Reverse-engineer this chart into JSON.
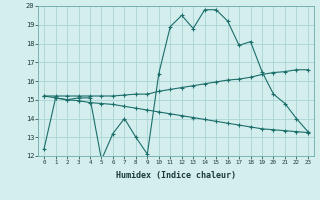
{
  "xlabel": "Humidex (Indice chaleur)",
  "bg_color": "#d4eeee",
  "grid_color": "#aad4d4",
  "line_color": "#1a6e6a",
  "xlim": [
    -0.5,
    23.5
  ],
  "ylim": [
    12,
    20
  ],
  "xtick_labels": [
    "0",
    "1",
    "2",
    "3",
    "4",
    "5",
    "6",
    "7",
    "8",
    "9",
    "10",
    "11",
    "12",
    "13",
    "14",
    "15",
    "16",
    "17",
    "18",
    "19",
    "20",
    "21",
    "22",
    "23"
  ],
  "ytick_labels": [
    "12",
    "13",
    "14",
    "15",
    "16",
    "17",
    "18",
    "19",
    "20"
  ],
  "line1_x": [
    0,
    1,
    2,
    3,
    4,
    5,
    6,
    7,
    8,
    9,
    10,
    11,
    12,
    13,
    14,
    15,
    16,
    17,
    18,
    19,
    20,
    21,
    22,
    23
  ],
  "line1_y": [
    12.4,
    15.1,
    15.0,
    15.1,
    15.1,
    11.8,
    13.2,
    14.0,
    13.0,
    12.1,
    16.4,
    18.9,
    19.5,
    18.8,
    19.8,
    19.8,
    19.2,
    17.9,
    18.1,
    16.5,
    15.3,
    14.8,
    14.0,
    13.3
  ],
  "line2_x": [
    0,
    1,
    2,
    3,
    4,
    5,
    6,
    7,
    8,
    9,
    10,
    11,
    12,
    13,
    14,
    15,
    16,
    17,
    18,
    19,
    20,
    21,
    22,
    23
  ],
  "line2_y": [
    15.2,
    15.2,
    15.2,
    15.2,
    15.2,
    15.2,
    15.2,
    15.25,
    15.3,
    15.3,
    15.45,
    15.55,
    15.65,
    15.75,
    15.85,
    15.95,
    16.05,
    16.1,
    16.2,
    16.35,
    16.45,
    16.5,
    16.6,
    16.6
  ],
  "line3_x": [
    0,
    1,
    2,
    3,
    4,
    5,
    6,
    7,
    8,
    9,
    10,
    11,
    12,
    13,
    14,
    15,
    16,
    17,
    18,
    19,
    20,
    21,
    22,
    23
  ],
  "line3_y": [
    15.2,
    15.1,
    15.0,
    14.95,
    14.85,
    14.8,
    14.75,
    14.65,
    14.55,
    14.45,
    14.35,
    14.25,
    14.15,
    14.05,
    13.95,
    13.85,
    13.75,
    13.65,
    13.55,
    13.45,
    13.4,
    13.35,
    13.3,
    13.25
  ]
}
